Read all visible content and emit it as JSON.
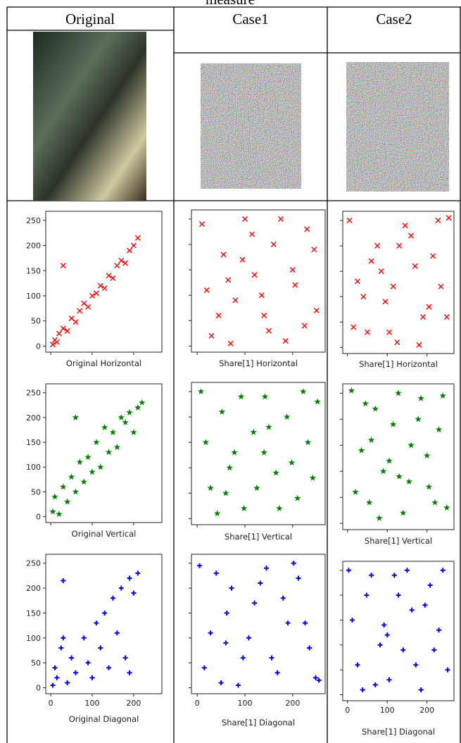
{
  "caption_fragment": "measure",
  "table": {
    "headers": [
      "Original",
      "Case1",
      "Case2"
    ]
  },
  "chart_data": [
    {
      "type": "scatter",
      "xlabel": "Original Horizontal",
      "marker": "x",
      "xlim": [
        -12,
        268
      ],
      "ylim": [
        -12,
        268
      ],
      "xticks": [
        0,
        100,
        200
      ],
      "yticks": [
        0,
        50,
        100,
        150,
        200,
        250
      ],
      "xtick_labels": false,
      "ytick_labels": true,
      "series": [
        {
          "color": "#ff0000",
          "x": [
            5,
            10,
            15,
            20,
            30,
            40,
            50,
            60,
            70,
            80,
            90,
            100,
            110,
            120,
            130,
            140,
            150,
            160,
            170,
            180,
            190,
            200,
            210,
            30
          ],
          "values": [
            3,
            12,
            8,
            25,
            35,
            30,
            55,
            48,
            70,
            85,
            78,
            100,
            105,
            120,
            115,
            140,
            135,
            160,
            170,
            165,
            190,
            200,
            215,
            160
          ]
        }
      ]
    },
    {
      "type": "scatter",
      "xlabel": "Share[1] Horizontal",
      "marker": "x",
      "xlim": [
        -12,
        268
      ],
      "ylim": [
        -12,
        268
      ],
      "xticks": [
        0,
        100,
        200
      ],
      "yticks": [
        0,
        50,
        100,
        150,
        200,
        250
      ],
      "xtick_labels": false,
      "ytick_labels": false,
      "series": [
        {
          "color": "#ff0000",
          "x": [
            10,
            30,
            55,
            80,
            100,
            120,
            140,
            160,
            185,
            205,
            230,
            250,
            20,
            45,
            70,
            95,
            115,
            150,
            175,
            200,
            225,
            245,
            65,
            135
          ],
          "values": [
            240,
            20,
            180,
            90,
            250,
            140,
            60,
            200,
            10,
            120,
            230,
            70,
            110,
            60,
            5,
            170,
            220,
            30,
            250,
            150,
            40,
            190,
            130,
            100
          ]
        }
      ]
    },
    {
      "type": "scatter",
      "xlabel": "Share[1] Horizontal",
      "marker": "x",
      "xlim": [
        -12,
        268
      ],
      "ylim": [
        -12,
        268
      ],
      "xticks": [
        0,
        100,
        200
      ],
      "yticks": [
        0,
        50,
        100,
        150,
        200,
        250
      ],
      "xtick_labels": false,
      "ytick_labels": false,
      "series": [
        {
          "color": "#ff0000",
          "x": [
            5,
            25,
            50,
            75,
            95,
            125,
            145,
            170,
            190,
            215,
            235,
            255,
            15,
            40,
            85,
            105,
            130,
            160,
            180,
            205,
            228,
            250,
            60,
            115
          ],
          "values": [
            250,
            130,
            30,
            200,
            90,
            10,
            240,
            160,
            60,
            180,
            120,
            255,
            40,
            100,
            150,
            30,
            200,
            220,
            5,
            80,
            250,
            60,
            170,
            120
          ]
        }
      ]
    },
    {
      "type": "scatter",
      "xlabel": "Original Vertical",
      "marker": "star",
      "xlim": [
        -12,
        268
      ],
      "ylim": [
        -12,
        268
      ],
      "xticks": [
        0,
        100,
        200
      ],
      "yticks": [
        0,
        50,
        100,
        150,
        200,
        250
      ],
      "xtick_labels": false,
      "ytick_labels": true,
      "series": [
        {
          "color": "#008000",
          "x": [
            5,
            10,
            20,
            30,
            40,
            50,
            60,
            70,
            80,
            90,
            100,
            110,
            120,
            130,
            140,
            150,
            160,
            170,
            180,
            190,
            200,
            210,
            220,
            60
          ],
          "values": [
            10,
            40,
            5,
            60,
            30,
            80,
            50,
            110,
            70,
            120,
            90,
            150,
            100,
            180,
            130,
            170,
            140,
            200,
            190,
            210,
            170,
            220,
            230,
            200
          ]
        }
      ]
    },
    {
      "type": "scatter",
      "xlabel": "Share[1] Vertical",
      "marker": "star",
      "xlim": [
        -12,
        268
      ],
      "ylim": [
        -12,
        268
      ],
      "xticks": [
        0,
        100,
        200
      ],
      "yticks": [
        0,
        50,
        100,
        150,
        200,
        250
      ],
      "xtick_labels": false,
      "ytick_labels": false,
      "series": [
        {
          "color": "#008000",
          "x": [
            8,
            28,
            52,
            78,
            98,
            118,
            142,
            165,
            188,
            210,
            232,
            252,
            18,
            42,
            68,
            92,
            125,
            150,
            172,
            198,
            222,
            242,
            60,
            140
          ],
          "values": [
            250,
            60,
            210,
            130,
            20,
            170,
            240,
            90,
            200,
            40,
            150,
            230,
            150,
            10,
            100,
            240,
            60,
            180,
            20,
            110,
            250,
            80,
            50,
            130
          ]
        }
      ]
    },
    {
      "type": "scatter",
      "xlabel": "Share[1] Vertical",
      "marker": "star",
      "xlim": [
        -12,
        268
      ],
      "ylim": [
        -12,
        268
      ],
      "xticks": [
        0,
        100,
        200
      ],
      "yticks": [
        0,
        50,
        100,
        150,
        200,
        250
      ],
      "xtick_labels": false,
      "ytick_labels": false,
      "series": [
        {
          "color": "#008000",
          "x": [
            10,
            35,
            55,
            70,
            90,
            115,
            140,
            160,
            185,
            205,
            230,
            250,
            20,
            45,
            80,
            105,
            128,
            155,
            178,
            200,
            220,
            240,
            60,
            130
          ],
          "values": [
            255,
            140,
            40,
            220,
            100,
            190,
            20,
            150,
            240,
            70,
            180,
            30,
            60,
            230,
            10,
            120,
            250,
            80,
            200,
            130,
            40,
            245,
            160,
            90
          ]
        }
      ]
    },
    {
      "type": "scatter",
      "xlabel": "Original Diagonal",
      "marker": "plus",
      "xlim": [
        -12,
        268
      ],
      "ylim": [
        -12,
        268
      ],
      "xticks": [
        0,
        100,
        200
      ],
      "yticks": [
        0,
        50,
        100,
        150,
        200,
        250
      ],
      "xtick_labels": true,
      "ytick_labels": true,
      "series": [
        {
          "color": "#0000ff",
          "x": [
            5,
            10,
            15,
            25,
            30,
            40,
            50,
            60,
            80,
            90,
            100,
            110,
            120,
            130,
            140,
            150,
            160,
            170,
            180,
            190,
            200,
            210,
            30,
            190
          ],
          "values": [
            5,
            40,
            20,
            80,
            215,
            10,
            60,
            30,
            100,
            50,
            20,
            130,
            80,
            150,
            40,
            180,
            110,
            200,
            60,
            220,
            190,
            230,
            100,
            30
          ]
        }
      ]
    },
    {
      "type": "scatter",
      "xlabel": "Share[1] Diagonal",
      "marker": "plus",
      "xlim": [
        -12,
        268
      ],
      "ylim": [
        -12,
        268
      ],
      "xticks": [
        0,
        100,
        200
      ],
      "yticks": [
        0,
        50,
        100,
        150,
        200,
        250
      ],
      "xtick_labels": true,
      "ytick_labels": false,
      "series": [
        {
          "color": "#0000ff",
          "x": [
            5,
            28,
            50,
            72,
            96,
            120,
            145,
            168,
            190,
            212,
            235,
            255,
            15,
            40,
            62,
            86,
            108,
            132,
            156,
            180,
            202,
            226,
            248,
            60
          ],
          "values": [
            245,
            110,
            10,
            200,
            60,
            170,
            240,
            30,
            130,
            220,
            80,
            15,
            40,
            230,
            150,
            5,
            100,
            210,
            60,
            180,
            250,
            130,
            20,
            90
          ]
        }
      ]
    },
    {
      "type": "scatter",
      "xlabel": "Share[1] Diagonal",
      "marker": "plus",
      "xlim": [
        -12,
        268
      ],
      "ylim": [
        -12,
        268
      ],
      "xticks": [
        0,
        100,
        200
      ],
      "yticks": [
        0,
        50,
        100,
        150,
        200,
        250
      ],
      "xtick_labels": true,
      "ytick_labels": false,
      "series": [
        {
          "color": "#0000ff",
          "x": [
            3,
            25,
            48,
            70,
            92,
            118,
            140,
            162,
            185,
            208,
            230,
            252,
            12,
            38,
            60,
            82,
            105,
            128,
            150,
            172,
            195,
            218,
            240,
            100
          ],
          "values": [
            250,
            60,
            200,
            20,
            140,
            240,
            90,
            170,
            10,
            220,
            130,
            50,
            150,
            10,
            240,
            100,
            30,
            200,
            250,
            60,
            180,
            90,
            250,
            120
          ]
        }
      ]
    }
  ]
}
